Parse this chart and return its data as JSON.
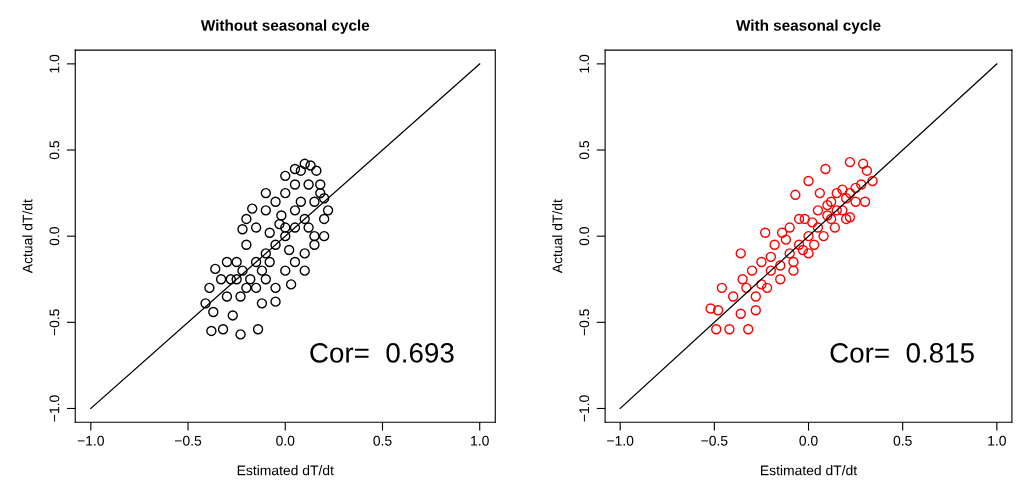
{
  "chart_data": [
    {
      "type": "scatter",
      "title": "Without seasonal cycle",
      "xlabel": "Estimated dT/dt",
      "ylabel": "Actual dT/dt",
      "marker": "circle",
      "grid": false,
      "legend": false,
      "xlim": [
        -1.08,
        1.08
      ],
      "ylim": [
        -1.08,
        1.08
      ],
      "xticks": [
        {
          "value": -1,
          "label": "−1.0"
        },
        {
          "value": -0.5,
          "label": "−0.5"
        },
        {
          "value": 0,
          "label": "0.0"
        },
        {
          "value": 0.5,
          "label": "0.5"
        },
        {
          "value": 1,
          "label": "1.0"
        }
      ],
      "yticks": [
        {
          "value": -1,
          "label": "−1.0"
        },
        {
          "value": -0.5,
          "label": "−0.5"
        },
        {
          "value": 0,
          "label": "0.0"
        },
        {
          "value": 0.5,
          "label": "0.5"
        },
        {
          "value": 1,
          "label": "1.0"
        }
      ],
      "annotations": [
        "Cor=  0.693"
      ],
      "series": [
        {
          "type": "scatter",
          "color": "#000000",
          "x": [
            0.1,
            0.13,
            0.16,
            0.05,
            -0.38,
            -0.32,
            -0.23,
            -0.14,
            -0.41,
            -0.37,
            -0.39,
            -0.36,
            -0.17,
            -0.22,
            -0.05,
            -0.12,
            -0.27,
            -0.23,
            0.0,
            0.05,
            -0.05,
            0.1,
            -0.1,
            0.15,
            -0.15,
            0.2,
            0.2,
            0.18,
            0.12,
            0.05,
            0.0,
            -0.05,
            -0.1,
            -0.15,
            -0.2,
            -0.25,
            -0.28,
            -0.3,
            -0.2,
            -0.1,
            0.0,
            0.05,
            0.1,
            0.15,
            0.2,
            0.22,
            0.08,
            -0.02,
            -0.08,
            0.02,
            -0.12,
            -0.18,
            0.1,
            -0.05,
            0.0,
            0.08,
            -0.1,
            -0.2,
            0.15,
            0.05,
            -0.03,
            0.12,
            -0.15,
            -0.25,
            0.03,
            0.18,
            -0.08,
            0.0,
            -0.22,
            -0.3,
            -0.33
          ],
          "values": [
            0.42,
            0.41,
            0.38,
            0.39,
            -0.55,
            -0.54,
            -0.57,
            -0.54,
            -0.39,
            -0.44,
            -0.3,
            -0.19,
            0.16,
            0.04,
            -0.38,
            -0.39,
            -0.46,
            -0.35,
            0.0,
            0.05,
            -0.05,
            0.1,
            -0.1,
            0.2,
            -0.15,
            0.22,
            0.1,
            0.3,
            0.3,
            0.3,
            0.25,
            0.2,
            0.15,
            0.05,
            -0.05,
            -0.15,
            -0.25,
            -0.35,
            -0.3,
            -0.25,
            -0.2,
            -0.15,
            -0.1,
            0.0,
            0.0,
            0.15,
            0.2,
            0.12,
            0.02,
            -0.08,
            -0.2,
            -0.25,
            -0.2,
            -0.3,
            0.35,
            0.38,
            0.25,
            0.1,
            -0.05,
            0.15,
            0.07,
            0.05,
            -0.3,
            -0.25,
            -0.28,
            0.25,
            -0.15,
            0.05,
            -0.2,
            -0.15,
            -0.25
          ]
        },
        {
          "type": "line",
          "marker": "none",
          "color": "#000000",
          "x": [
            -1,
            1
          ],
          "values": [
            -1,
            1
          ]
        }
      ]
    },
    {
      "type": "scatter",
      "title": "With seasonal cycle",
      "xlabel": "Estimated dT/dt",
      "ylabel": "Actual dT/dt",
      "marker": "circle",
      "grid": false,
      "legend": false,
      "xlim": [
        -1.08,
        1.08
      ],
      "ylim": [
        -1.08,
        1.08
      ],
      "xticks": [
        {
          "value": -1,
          "label": "−1.0"
        },
        {
          "value": -0.5,
          "label": "−0.5"
        },
        {
          "value": 0,
          "label": "0.0"
        },
        {
          "value": 0.5,
          "label": "0.5"
        },
        {
          "value": 1,
          "label": "1.0"
        }
      ],
      "yticks": [
        {
          "value": -1,
          "label": "−1.0"
        },
        {
          "value": -0.5,
          "label": "−0.5"
        },
        {
          "value": 0,
          "label": "0.0"
        },
        {
          "value": 0.5,
          "label": "0.5"
        },
        {
          "value": 1,
          "label": "1.0"
        }
      ],
      "annotations": [
        "Cor=  0.815"
      ],
      "series": [
        {
          "type": "scatter",
          "color": "#ff0000",
          "x": [
            0.22,
            0.29,
            0.09,
            0.31,
            0.34,
            0.3,
            0.0,
            -0.07,
            -0.23,
            -0.36,
            -0.46,
            -0.48,
            -0.42,
            -0.32,
            -0.49,
            -0.28,
            -0.36,
            0.22,
            -0.52,
            0.0,
            0.05,
            -0.05,
            0.1,
            -0.1,
            0.15,
            -0.15,
            0.2,
            -0.2,
            0.25,
            -0.25,
            0.28,
            0.12,
            0.18,
            0.05,
            -0.02,
            -0.08,
            -0.12,
            -0.18,
            -0.22,
            -0.3,
            0.08,
            0.14,
            0.2,
            0.25,
            0.0,
            -0.05,
            -0.1,
            -0.15,
            0.1,
            0.03,
            -0.03,
            -0.28,
            -0.35,
            -0.4,
            0.15,
            0.06,
            -0.14,
            0.22,
            0.02,
            -0.2,
            0.12,
            -0.08,
            0.18,
            -0.25,
            -0.33
          ],
          "values": [
            0.43,
            0.42,
            0.39,
            0.38,
            0.32,
            0.2,
            0.32,
            0.24,
            0.02,
            -0.1,
            -0.3,
            -0.43,
            -0.54,
            -0.54,
            -0.54,
            -0.43,
            -0.45,
            0.11,
            -0.42,
            0.0,
            0.05,
            -0.05,
            0.12,
            -0.1,
            0.15,
            -0.17,
            0.22,
            -0.2,
            0.28,
            -0.28,
            0.3,
            0.2,
            0.15,
            0.15,
            0.1,
            -0.15,
            -0.02,
            -0.05,
            -0.3,
            -0.2,
            0.0,
            0.05,
            0.1,
            0.2,
            -0.1,
            0.1,
            0.05,
            -0.25,
            0.18,
            -0.05,
            -0.08,
            -0.35,
            -0.25,
            -0.35,
            0.25,
            0.25,
            0.02,
            0.25,
            0.08,
            -0.12,
            0.1,
            -0.2,
            0.27,
            -0.15,
            -0.3
          ]
        },
        {
          "type": "line",
          "marker": "none",
          "color": "#000000",
          "x": [
            -1,
            1
          ],
          "values": [
            -1,
            1
          ]
        }
      ]
    }
  ]
}
